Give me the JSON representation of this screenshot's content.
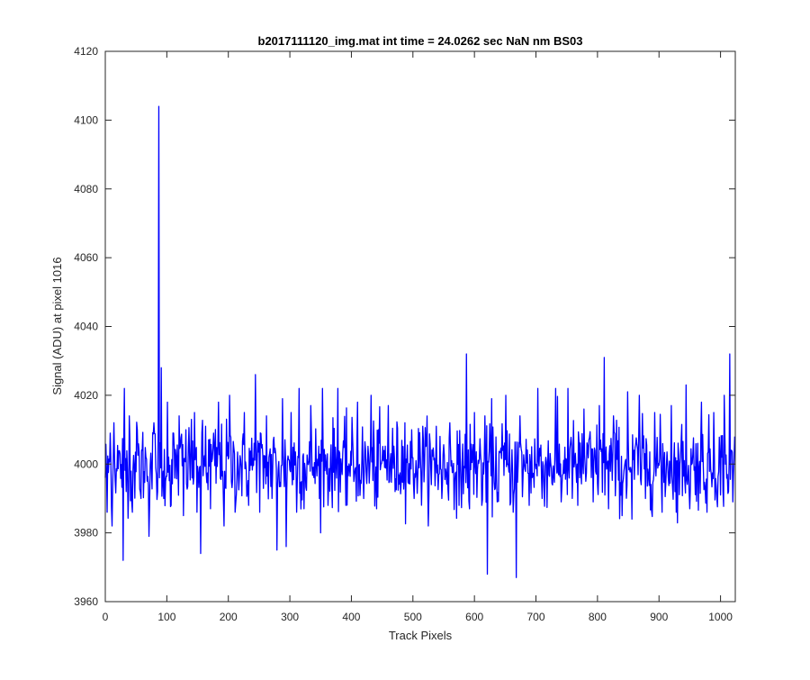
{
  "chart_data": {
    "type": "line",
    "title": "b2017111120_img.mat int time = 24.0262 sec  NaN nm BS03",
    "xlabel": "Track Pixels",
    "ylabel": "Signal (ADU) at pixel 1016",
    "xlim": [
      0,
      1024
    ],
    "ylim": [
      3960,
      4120
    ],
    "xticks": [
      0,
      100,
      200,
      300,
      400,
      500,
      600,
      700,
      800,
      900,
      1000
    ],
    "yticks": [
      3960,
      3980,
      4000,
      4020,
      4040,
      4060,
      4080,
      4100,
      4120
    ],
    "grid": false,
    "series": [
      {
        "color": "#0000ff",
        "noise": {
          "n_points": 1024,
          "mean": 4000,
          "std": 6
        },
        "points": [
          [
            0,
            3996
          ],
          [
            3,
            3986
          ],
          [
            8,
            4009
          ],
          [
            11,
            3982
          ],
          [
            14,
            4012
          ],
          [
            19,
            3998
          ],
          [
            24,
            4003
          ],
          [
            29,
            3972
          ],
          [
            31,
            4022
          ],
          [
            34,
            3992
          ],
          [
            39,
            4014
          ],
          [
            44,
            3986
          ],
          [
            52,
            4010
          ],
          [
            58,
            3990
          ],
          [
            66,
            4002
          ],
          [
            71,
            3979
          ],
          [
            79,
            4012
          ],
          [
            85,
            3992
          ],
          [
            87,
            4104
          ],
          [
            88,
            3996
          ],
          [
            91,
            4028
          ],
          [
            95,
            3990
          ],
          [
            101,
            4018
          ],
          [
            107,
            3988
          ],
          [
            120,
            4014
          ],
          [
            127,
            3985
          ],
          [
            140,
            4013
          ],
          [
            149,
            3986
          ],
          [
            155,
            3974
          ],
          [
            163,
            4011
          ],
          [
            171,
            3987
          ],
          [
            184,
            4018
          ],
          [
            193,
            3982
          ],
          [
            202,
            4020
          ],
          [
            211,
            3986
          ],
          [
            226,
            4015
          ],
          [
            233,
            3988
          ],
          [
            244,
            4026
          ],
          [
            251,
            3986
          ],
          [
            262,
            4014
          ],
          [
            271,
            3990
          ],
          [
            279,
            3975
          ],
          [
            288,
            4019
          ],
          [
            294,
            3976
          ],
          [
            302,
            4015
          ],
          [
            311,
            3986
          ],
          [
            315,
            4022
          ],
          [
            323,
            3987
          ],
          [
            334,
            4017
          ],
          [
            348,
            3990
          ],
          [
            353,
            4022
          ],
          [
            362,
            3988
          ],
          [
            378,
            4022
          ],
          [
            391,
            3988
          ],
          [
            410,
            4018
          ],
          [
            420,
            3990
          ],
          [
            432,
            4020
          ],
          [
            441,
            3987
          ],
          [
            460,
            4017
          ],
          [
            471,
            3992
          ],
          [
            487,
            4012
          ],
          [
            502,
            3990
          ],
          [
            516,
            4011
          ],
          [
            525,
            3982
          ],
          [
            530,
            3994
          ],
          [
            538,
            4011
          ],
          [
            547,
            3990
          ],
          [
            560,
            4012
          ],
          [
            575,
            3988
          ],
          [
            587,
            4032
          ],
          [
            592,
            3987
          ],
          [
            600,
            4015
          ],
          [
            612,
            3988
          ],
          [
            621,
            3968
          ],
          [
            628,
            4019
          ],
          [
            637,
            3989
          ],
          [
            651,
            4020
          ],
          [
            663,
            3986
          ],
          [
            668,
            3967
          ],
          [
            674,
            4014
          ],
          [
            689,
            3988
          ],
          [
            703,
            4022
          ],
          [
            710,
            3990
          ],
          [
            732,
            4022
          ],
          [
            741,
            3989
          ],
          [
            752,
            4022
          ],
          [
            768,
            3988
          ],
          [
            778,
            4016
          ],
          [
            793,
            3989
          ],
          [
            803,
            4017
          ],
          [
            811,
            4031
          ],
          [
            818,
            3987
          ],
          [
            826,
            4014
          ],
          [
            840,
            3985
          ],
          [
            849,
            4021
          ],
          [
            856,
            3984
          ],
          [
            868,
            4020
          ],
          [
            878,
            3990
          ],
          [
            893,
            4015
          ],
          [
            905,
            3986
          ],
          [
            920,
            4017
          ],
          [
            928,
            3986
          ],
          [
            944,
            4023
          ],
          [
            950,
            3987
          ],
          [
            969,
            4018
          ],
          [
            978,
            3986
          ],
          [
            989,
            4015
          ],
          [
            1000,
            3991
          ],
          [
            1006,
            4020
          ],
          [
            1011,
            3997
          ],
          [
            1015,
            4032
          ],
          [
            1018,
            4004
          ],
          [
            1020,
            3989
          ],
          [
            1023,
            4008
          ]
        ]
      }
    ]
  }
}
